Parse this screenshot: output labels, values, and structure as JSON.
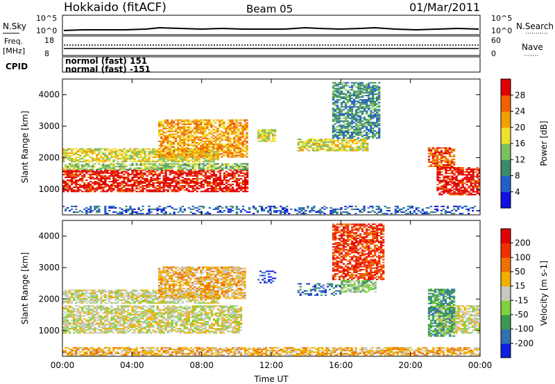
{
  "header": {
    "station": "Hokkaido (fitACF)",
    "beam": "Beam 05",
    "date": "01/Mar/2011"
  },
  "noise_panel": {
    "left_label": "N.Sky",
    "right_label": "N.Search",
    "left_ticks": [
      "10^5",
      "10^0"
    ],
    "right_ticks": [
      "10^5",
      "10^0"
    ]
  },
  "freq_panel": {
    "left_label_1": "Freq.",
    "left_label_2": "[MHz]",
    "left_ticks": [
      "8",
      "18"
    ],
    "right_label": "Nave",
    "right_ticks": [
      "60",
      "0"
    ]
  },
  "cpid_panel": {
    "label": "CPID",
    "lines": [
      "normol (fast) 151",
      "normal (fast) -151"
    ]
  },
  "chart_data": [
    {
      "type": "heatmap",
      "name": "power",
      "ylabel": "Slant Range [km]",
      "y_ticks": [
        "1000",
        "2000",
        "3000",
        "4000"
      ],
      "x_ticks": [
        "00:00",
        "04:00",
        "08:00",
        "12:00",
        "16:00",
        "20:00",
        "00:00"
      ],
      "xlim": [
        0,
        24
      ],
      "ylim": [
        180,
        4500
      ],
      "colorbar": {
        "label": "Power [dB]",
        "tick_labels": [
          "4",
          "8",
          "12",
          "16",
          "20",
          "24",
          "28"
        ],
        "colors": [
          "#1010e0",
          "#2060c8",
          "#3c8a6a",
          "#7cc060",
          "#f0e030",
          "#f0a000",
          "#f06000",
          "#e00000"
        ]
      },
      "echo_regions": [
        {
          "t0": 0.0,
          "t1": 10.6,
          "r0": 900,
          "r1": 1600,
          "level": 7
        },
        {
          "t0": 0.0,
          "t1": 10.6,
          "r0": 1600,
          "r1": 1800,
          "level": 3
        },
        {
          "t0": 0.0,
          "t1": 9.0,
          "r0": 1850,
          "r1": 2300,
          "level": 4
        },
        {
          "t0": 5.5,
          "t1": 10.6,
          "r0": 2000,
          "r1": 3200,
          "level": 5
        },
        {
          "t0": 11.2,
          "t1": 12.2,
          "r0": 2500,
          "r1": 2900,
          "level": 4
        },
        {
          "t0": 13.5,
          "t1": 17.5,
          "r0": 2200,
          "r1": 2600,
          "level": 4
        },
        {
          "t0": 15.5,
          "t1": 18.2,
          "r0": 2600,
          "r1": 4400,
          "level": 2
        },
        {
          "t0": 21.5,
          "t1": 24.0,
          "r0": 800,
          "r1": 1700,
          "level": 7
        },
        {
          "t0": 21.0,
          "t1": 22.5,
          "r0": 1700,
          "r1": 2300,
          "level": 6
        },
        {
          "t0": 0.0,
          "t1": 24.0,
          "r0": 200,
          "r1": 450,
          "level": 1
        }
      ]
    },
    {
      "type": "heatmap",
      "name": "velocity",
      "ylabel": "Slant Range [km]",
      "y_ticks": [
        "1000",
        "2000",
        "3000",
        "4000"
      ],
      "x_ticks": [
        "00:00",
        "04:00",
        "08:00",
        "12:00",
        "16:00",
        "20:00",
        "00:00"
      ],
      "xlabel": "Time UT",
      "xlim": [
        0,
        24
      ],
      "ylim": [
        180,
        4500
      ],
      "colorbar": {
        "label": "Velocity [m s-1]",
        "tick_labels": [
          "200",
          "100",
          "50",
          "15",
          "-15",
          "-50",
          "-100",
          "-200"
        ],
        "colors": [
          "#1020e0",
          "#3070b0",
          "#3c9a50",
          "#80d040",
          "#c8c8c0",
          "#f0b000",
          "#f07000",
          "#f03000",
          "#e00000"
        ]
      },
      "echo_regions": [
        {
          "t0": 0.0,
          "t1": 10.3,
          "r0": 900,
          "r1": 1800,
          "level": 4
        },
        {
          "t0": 0.0,
          "t1": 9.0,
          "r0": 1850,
          "r1": 2300,
          "level": 4
        },
        {
          "t0": 5.5,
          "t1": 10.5,
          "r0": 2000,
          "r1": 3000,
          "level": 5
        },
        {
          "t0": 11.2,
          "t1": 12.2,
          "r0": 2500,
          "r1": 2900,
          "level": 0
        },
        {
          "t0": 13.5,
          "t1": 16.0,
          "r0": 2100,
          "r1": 2500,
          "level": 1
        },
        {
          "t0": 15.5,
          "t1": 18.5,
          "r0": 2600,
          "r1": 4400,
          "level": 7
        },
        {
          "t0": 16.0,
          "t1": 18.0,
          "r0": 2200,
          "r1": 2600,
          "level": 3
        },
        {
          "t0": 21.5,
          "t1": 24.0,
          "r0": 900,
          "r1": 1800,
          "level": 4
        },
        {
          "t0": 21.0,
          "t1": 22.5,
          "r0": 800,
          "r1": 2300,
          "level": 2
        },
        {
          "t0": 0.0,
          "t1": 24.0,
          "r0": 200,
          "r1": 450,
          "level": 5
        }
      ]
    }
  ]
}
